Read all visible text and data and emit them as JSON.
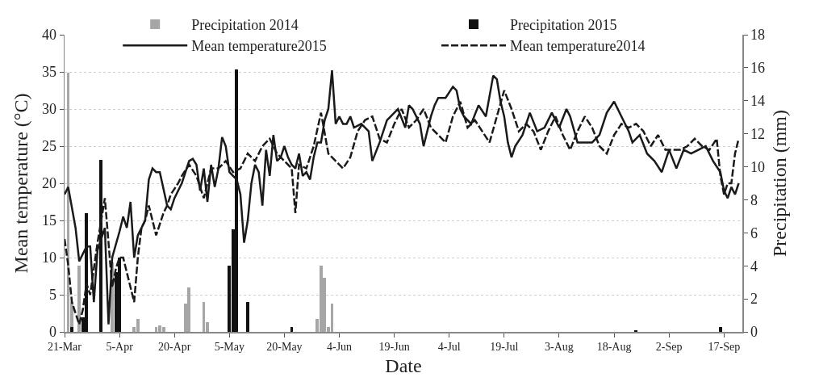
{
  "chart_data": {
    "type": "line",
    "xlabel": "Date",
    "ylabel": "Mean temperature (°C)",
    "y2label": "Precipitation (mm)",
    "xlim": [
      "--03-21",
      "--09-22"
    ],
    "xticks": [
      {
        "value": "--03-21",
        "label": "21-Mar"
      },
      {
        "value": "--04-05",
        "label": "5-Apr"
      },
      {
        "value": "--04-20",
        "label": "20-Apr"
      },
      {
        "value": "--05-05",
        "label": "5-May"
      },
      {
        "value": "--05-20",
        "label": "20-May"
      },
      {
        "value": "--06-04",
        "label": "4-Jun"
      },
      {
        "value": "--06-19",
        "label": "19-Jun"
      },
      {
        "value": "--07-04",
        "label": "4-Jul"
      },
      {
        "value": "--07-19",
        "label": "19-Jul"
      },
      {
        "value": "--08-03",
        "label": "3-Aug"
      },
      {
        "value": "--08-18",
        "label": "18-Aug"
      },
      {
        "value": "--09-02",
        "label": "2-Sep"
      },
      {
        "value": "--09-17",
        "label": "17-Sep"
      }
    ],
    "ylim": [
      0,
      40
    ],
    "yticks": [
      0,
      5,
      10,
      15,
      20,
      25,
      30,
      35,
      40
    ],
    "y2lim": [
      0,
      18
    ],
    "y2ticks": [
      0,
      2,
      4,
      6,
      8,
      10,
      12,
      14,
      16,
      18
    ],
    "grid": "y",
    "legend": "top",
    "marker": "none",
    "series": [
      {
        "name": "Precipitation 2014",
        "type": "bar",
        "axis": "y2",
        "color": "#a6a6a6",
        "x": [
          "--03-22",
          "--03-23",
          "--03-25",
          "--04-03",
          "--04-09",
          "--04-10",
          "--04-15",
          "--04-16",
          "--04-17",
          "--04-23",
          "--04-24",
          "--04-28",
          "--04-29",
          "--05-29",
          "--05-30",
          "--05-31",
          "--06-01",
          "--06-02"
        ],
        "values": [
          15.7,
          1.8,
          4.0,
          4.2,
          0.3,
          0.8,
          0.3,
          0.4,
          0.3,
          1.7,
          2.7,
          1.8,
          0.6,
          0.8,
          4.0,
          3.3,
          0.3,
          1.7
        ]
      },
      {
        "name": "Precipitation 2015",
        "type": "bar",
        "axis": "y2",
        "color": "#111111",
        "x": [
          "--03-23",
          "--03-26",
          "--03-27",
          "--03-31",
          "--04-04",
          "--04-05",
          "--05-05",
          "--05-06",
          "--05-07",
          "--05-10",
          "--05-22",
          "--08-24",
          "--09-16"
        ],
        "values": [
          0.3,
          0.9,
          7.2,
          10.4,
          3.6,
          4.5,
          4.0,
          6.2,
          15.9,
          1.8,
          0.3,
          0.1,
          0.3
        ]
      },
      {
        "name": "Mean temperature2015",
        "line_style": "solid",
        "color": "#1a1a1a",
        "x": [
          "--03-21",
          "--03-22",
          "--03-24",
          "--03-25",
          "--03-27",
          "--03-28",
          "--03-29",
          "--03-30",
          "--04-01",
          "--04-02",
          "--04-03",
          "--04-05",
          "--04-06",
          "--04-07",
          "--04-08",
          "--04-09",
          "--04-10",
          "--04-12",
          "--04-13",
          "--04-14",
          "--04-15",
          "--04-16",
          "--04-18",
          "--04-19",
          "--04-20",
          "--04-22",
          "--04-24",
          "--04-25",
          "--04-26",
          "--04-27",
          "--04-28",
          "--04-29",
          "--04-30",
          "--05-01",
          "--05-02",
          "--05-03",
          "--05-04",
          "--05-05",
          "--05-06",
          "--05-07",
          "--05-08",
          "--05-09",
          "--05-10",
          "--05-11",
          "--05-12",
          "--05-13",
          "--05-14",
          "--05-15",
          "--05-16",
          "--05-17",
          "--05-18",
          "--05-19",
          "--05-20",
          "--05-21",
          "--05-22",
          "--05-23",
          "--05-24",
          "--05-25",
          "--05-26",
          "--05-27",
          "--05-28",
          "--05-29",
          "--05-30",
          "--05-31",
          "--06-01",
          "--06-02",
          "--06-03",
          "--06-04",
          "--06-05",
          "--06-06",
          "--06-07",
          "--06-08",
          "--06-10",
          "--06-12",
          "--06-13",
          "--06-15",
          "--06-17",
          "--06-19",
          "--06-20",
          "--06-22",
          "--06-23",
          "--06-24",
          "--06-26",
          "--06-27",
          "--06-29",
          "--06-30",
          "--07-01",
          "--07-03",
          "--07-05",
          "--07-06",
          "--07-07",
          "--07-08",
          "--07-10",
          "--07-12",
          "--07-14",
          "--07-16",
          "--07-17",
          "--07-18",
          "--07-19",
          "--07-20",
          "--07-21",
          "--07-22",
          "--07-24",
          "--07-26",
          "--07-28",
          "--07-30",
          "--08-01",
          "--08-03",
          "--08-05",
          "--08-06",
          "--08-08",
          "--08-10",
          "--08-12",
          "--08-14",
          "--08-16",
          "--08-18",
          "--08-20",
          "--08-22",
          "--08-23",
          "--08-25",
          "--08-27",
          "--08-29",
          "--08-31",
          "--09-02",
          "--09-04",
          "--09-06",
          "--09-08",
          "--09-10",
          "--09-12",
          "--09-14",
          "--09-16",
          "--09-17",
          "--09-18",
          "--09-19",
          "--09-20",
          "--09-21"
        ],
        "values": [
          18.5,
          19.5,
          14,
          9.5,
          11.5,
          11.5,
          4,
          11,
          14,
          1,
          10,
          13.5,
          15.5,
          14,
          17.5,
          10,
          13,
          15,
          20.5,
          22,
          21.5,
          21.5,
          17,
          16.5,
          18,
          20,
          23,
          23.3,
          22.5,
          19,
          22,
          17.5,
          22.5,
          19.5,
          22,
          26.2,
          25,
          21.5,
          21,
          20.5,
          18.5,
          12,
          15,
          20,
          22.5,
          21.5,
          17,
          24.5,
          21,
          26.5,
          23,
          23.5,
          25,
          23.5,
          22.5,
          22,
          24,
          21,
          21.5,
          20.5,
          23.5,
          25.5,
          25.5,
          28.5,
          30,
          35.2,
          28,
          29,
          28,
          28,
          29,
          27.5,
          28,
          27,
          23,
          25.5,
          28.5,
          29.5,
          30,
          27.5,
          30.5,
          30,
          28,
          25,
          29,
          30.5,
          31.5,
          31.5,
          33,
          32.5,
          30,
          29,
          28,
          30.5,
          29,
          34.5,
          34,
          31,
          29,
          25.5,
          23.5,
          25,
          26.5,
          29.5,
          27,
          27.5,
          29.5,
          27.5,
          30,
          29,
          25.5,
          25.5,
          25.5,
          26.5,
          29.5,
          31,
          29,
          27,
          25.5,
          26.5,
          24,
          23,
          21.5,
          24.5,
          22,
          24.5,
          24,
          24.5,
          25,
          23,
          21.5,
          19,
          18,
          19.5,
          18.5,
          20
        ]
      },
      {
        "name": "Mean temperature2014",
        "line_style": "dashed",
        "color": "#1a1a1a",
        "x": [
          "--03-21",
          "--03-22",
          "--03-23",
          "--03-25",
          "--03-26",
          "--03-27",
          "--03-28",
          "--03-30",
          "--03-31",
          "--04-01",
          "--04-03",
          "--04-04",
          "--04-05",
          "--04-06",
          "--04-07",
          "--04-09",
          "--04-10",
          "--04-11",
          "--04-12",
          "--04-13",
          "--04-15",
          "--04-17",
          "--04-18",
          "--04-19",
          "--04-21",
          "--04-22",
          "--04-24",
          "--04-26",
          "--04-28",
          "--04-30",
          "--05-02",
          "--05-04",
          "--05-06",
          "--05-08",
          "--05-10",
          "--05-12",
          "--05-14",
          "--05-16",
          "--05-18",
          "--05-20",
          "--05-22",
          "--05-23",
          "--05-24",
          "--05-26",
          "--05-28",
          "--05-30",
          "--06-01",
          "--06-03",
          "--06-05",
          "--06-07",
          "--06-09",
          "--06-11",
          "--06-13",
          "--06-15",
          "--06-17",
          "--06-19",
          "--06-21",
          "--06-23",
          "--06-25",
          "--06-27",
          "--06-29",
          "--07-01",
          "--07-03",
          "--07-05",
          "--07-07",
          "--07-09",
          "--07-11",
          "--07-13",
          "--07-15",
          "--07-17",
          "--07-19",
          "--07-21",
          "--07-23",
          "--07-25",
          "--07-27",
          "--07-29",
          "--07-31",
          "--08-02",
          "--08-04",
          "--08-06",
          "--08-08",
          "--08-10",
          "--08-12",
          "--08-14",
          "--08-16",
          "--08-18",
          "--08-20",
          "--08-22",
          "--08-24",
          "--08-26",
          "--08-28",
          "--08-30",
          "--09-01",
          "--09-03",
          "--09-05",
          "--09-07",
          "--09-09",
          "--09-11",
          "--09-13",
          "--09-15",
          "--09-16",
          "--09-17",
          "--09-18",
          "--09-19",
          "--09-20",
          "--09-21"
        ],
        "values": [
          12.5,
          9,
          4,
          1,
          3,
          6.5,
          5,
          12,
          15,
          18,
          6,
          8.5,
          10,
          10,
          8,
          4,
          10,
          14,
          15,
          17,
          13,
          16,
          17,
          18.5,
          20,
          21,
          22.5,
          21,
          18,
          22,
          22,
          23,
          21.5,
          22,
          24,
          23,
          25,
          26,
          24,
          23,
          22,
          16,
          22.5,
          22,
          25,
          29.5,
          24,
          23,
          22,
          23.5,
          27,
          28.5,
          29,
          26,
          25.5,
          28,
          30,
          27.5,
          28.5,
          30,
          27.5,
          26.5,
          25.5,
          29,
          31,
          27.5,
          28.5,
          27,
          25.5,
          29,
          32.5,
          30,
          27,
          28,
          27,
          24.5,
          27,
          29,
          26.5,
          24.5,
          27,
          29,
          27.5,
          25,
          24,
          26.5,
          28,
          27.5,
          28,
          27,
          25,
          26.5,
          24.5,
          24.5,
          24.5,
          25,
          26,
          25,
          24.5,
          26,
          21,
          18.5,
          20,
          20,
          24,
          26
        ]
      }
    ]
  }
}
